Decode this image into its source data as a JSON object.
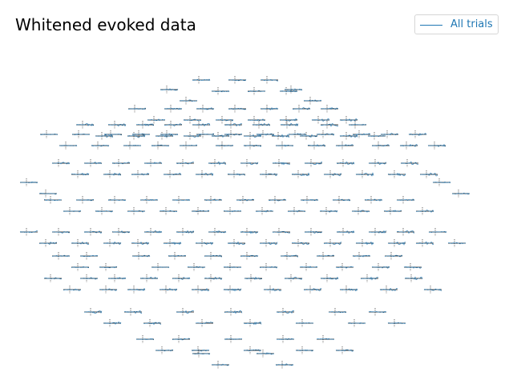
{
  "title": "Whitened evoked data",
  "legend": {
    "label": "All trials",
    "color": "#1f77b4"
  },
  "chart_data": {
    "type": "line",
    "title": "Whitened evoked data",
    "xlabel": "",
    "ylabel": "",
    "layout": "topographic sensor grid (one small trace per sensor pair)",
    "series": [
      {
        "name": "All trials",
        "color": "#1f77b4",
        "linewidth": "thin"
      }
    ],
    "axes_color": "#000000",
    "grid": false,
    "legend_position": "top-right"
  }
}
